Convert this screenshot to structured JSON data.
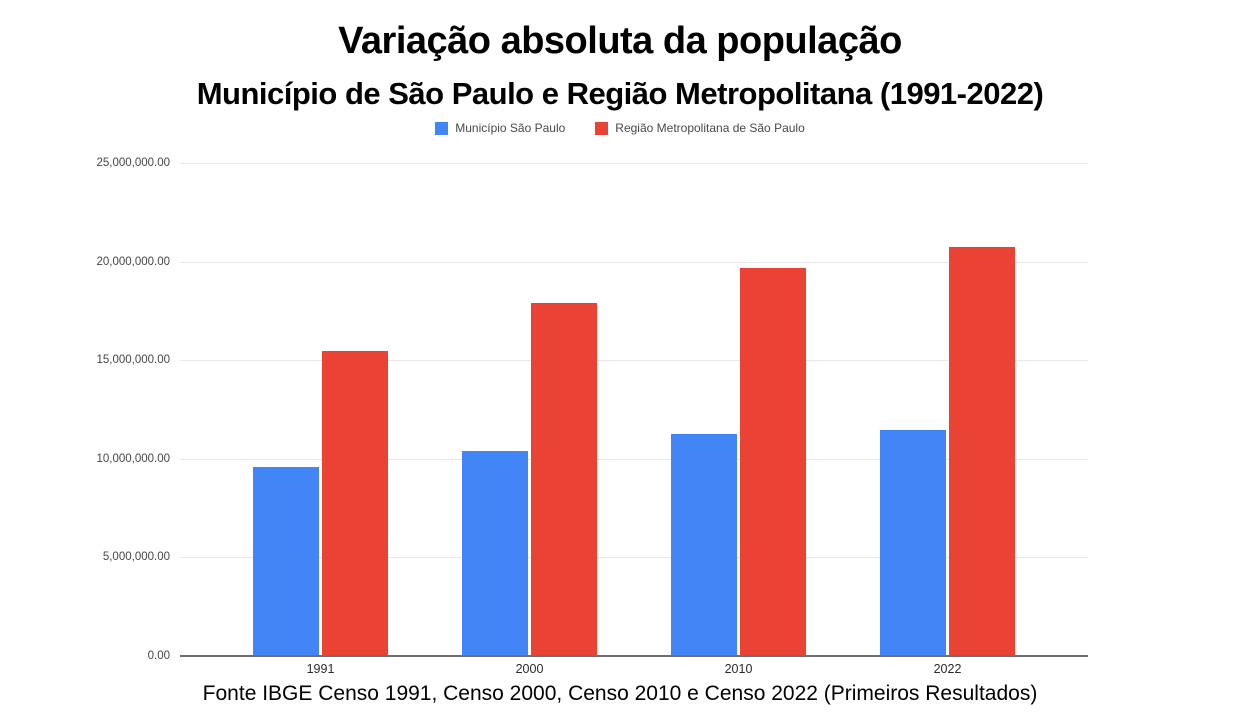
{
  "title": "Variação absoluta da população",
  "subtitle": "Município de São Paulo e Região Metropolitana (1991-2022)",
  "source": "Fonte IBGE Censo 1991, Censo 2000, Censo 2010 e Censo 2022 (Primeiros Resultados)",
  "colors": {
    "series_municipio": "#4285f4",
    "series_regiao": "#ea4335",
    "gridline": "#e8e8e8",
    "axis_line": "#6f6f6f"
  },
  "chart_data": {
    "type": "bar",
    "title": "Variação absoluta da população",
    "subtitle": "Município de São Paulo e Região Metropolitana (1991-2022)",
    "xlabel": "",
    "ylabel": "",
    "categories": [
      "1991",
      "2000",
      "2010",
      "2022"
    ],
    "series": [
      {
        "name": "Município São Paulo",
        "color": "#4285f4",
        "values": [
          9600000,
          10400000,
          11250000,
          11450000
        ]
      },
      {
        "name": "Região Metropolitana de São Paulo",
        "color": "#ea4335",
        "values": [
          15450000,
          17900000,
          19700000,
          20750000
        ]
      }
    ],
    "ylim": [
      0,
      25000000
    ],
    "yticks": [
      {
        "value": 0,
        "label": "0.00"
      },
      {
        "value": 5000000,
        "label": "5,000,000.00"
      },
      {
        "value": 10000000,
        "label": "10,000,000.00"
      },
      {
        "value": 15000000,
        "label": "15,000,000.00"
      },
      {
        "value": 20000000,
        "label": "20,000,000.00"
      },
      {
        "value": 25000000,
        "label": "25,000,000.00"
      }
    ],
    "grid": true,
    "legend_position": "top"
  }
}
